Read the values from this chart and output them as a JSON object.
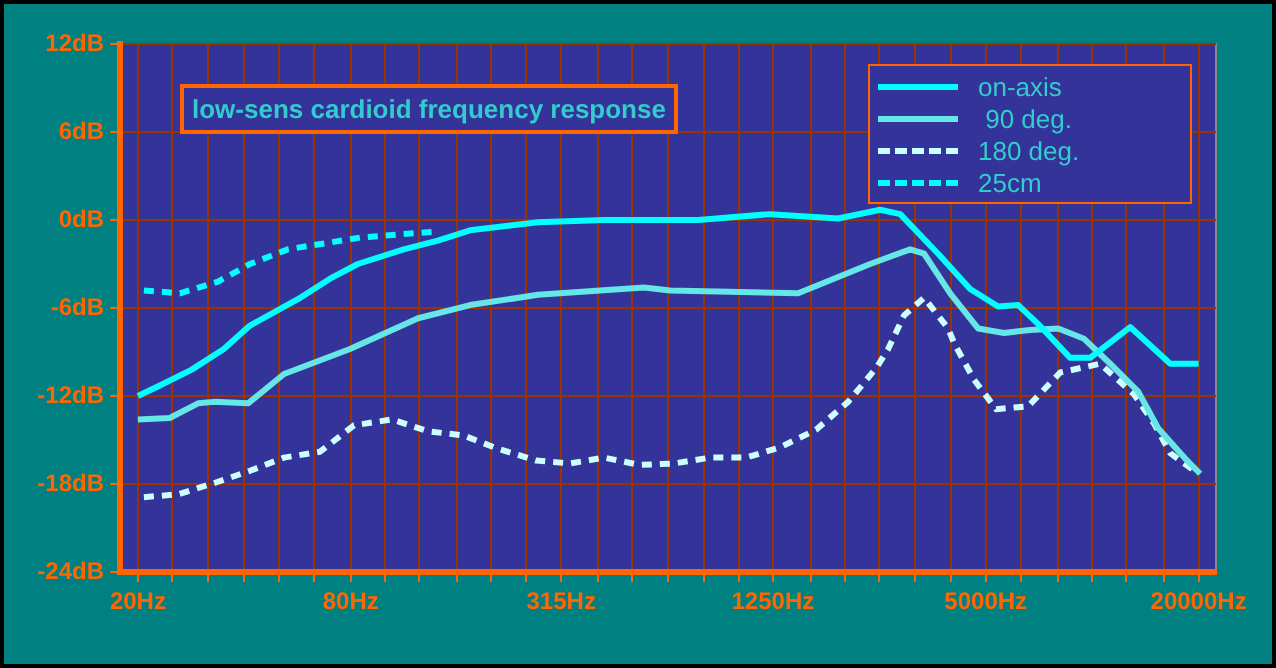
{
  "chart_data": {
    "type": "line",
    "title": "low-sens cardioid frequency response",
    "log": "x",
    "grid": true,
    "legend": "top right",
    "xlim": [
      17.8,
      22400
    ],
    "ylim": [
      -24,
      12
    ],
    "xticks": [
      {
        "value": 20,
        "label": "20Hz"
      },
      {
        "value": 25,
        "label": null
      },
      {
        "value": 31.5,
        "label": null
      },
      {
        "value": 40,
        "label": null
      },
      {
        "value": 50,
        "label": null
      },
      {
        "value": 63,
        "label": null
      },
      {
        "value": 80,
        "label": "80Hz"
      },
      {
        "value": 100,
        "label": null
      },
      {
        "value": 125,
        "label": null
      },
      {
        "value": 160,
        "label": null
      },
      {
        "value": 200,
        "label": null
      },
      {
        "value": 250,
        "label": null
      },
      {
        "value": 315,
        "label": "315Hz"
      },
      {
        "value": 400,
        "label": null
      },
      {
        "value": 500,
        "label": null
      },
      {
        "value": 630,
        "label": null
      },
      {
        "value": 800,
        "label": null
      },
      {
        "value": 1000,
        "label": null
      },
      {
        "value": 1250,
        "label": "1250Hz"
      },
      {
        "value": 1600,
        "label": null
      },
      {
        "value": 2000,
        "label": null
      },
      {
        "value": 2500,
        "label": null
      },
      {
        "value": 3150,
        "label": null
      },
      {
        "value": 4000,
        "label": null
      },
      {
        "value": 5000,
        "label": "5000Hz"
      },
      {
        "value": 6300,
        "label": null
      },
      {
        "value": 8000,
        "label": null
      },
      {
        "value": 10000,
        "label": null
      },
      {
        "value": 12500,
        "label": null
      },
      {
        "value": 16000,
        "label": null
      },
      {
        "value": 20000,
        "label": "20000Hz"
      }
    ],
    "yticks": [
      {
        "value": -24,
        "label": "-24dB"
      },
      {
        "value": -18,
        "label": "-18dB"
      },
      {
        "value": -12,
        "label": "-12dB"
      },
      {
        "value": -6,
        "label": "-6dB"
      },
      {
        "value": 0,
        "label": "0dB"
      },
      {
        "value": 6,
        "label": "6dB"
      },
      {
        "value": 12,
        "label": "12dB"
      }
    ],
    "series": [
      {
        "name": "on-axis",
        "color": "#00ffff",
        "line_style": "solid",
        "x": [
          20,
          23,
          28.4,
          35,
          41.5,
          56.7,
          69.9,
          83.8,
          113,
          141,
          174,
          271,
          417,
          768,
          1228,
          1912,
          2515,
          2865,
          3667,
          4517,
          5420,
          6178,
          7040,
          8667,
          9870,
          12810,
          16630,
          20000
        ],
        "values": [
          -12,
          -11.3,
          -10.2,
          -8.8,
          -7.2,
          -5.4,
          -4,
          -3,
          -2,
          -1.4,
          -0.7,
          -0.15,
          0,
          0,
          0.4,
          0.1,
          0.7,
          0.4,
          -2.3,
          -4.7,
          -5.9,
          -5.8,
          -7.1,
          -9.4,
          -9.4,
          -7.3,
          -9.8,
          -9.8
        ]
      },
      {
        "name": " 90 deg.",
        "color": "#66e6e6",
        "line_style": "solid",
        "x": [
          20,
          24.6,
          29.6,
          32.8,
          41,
          51.8,
          79.6,
          124,
          174,
          271,
          540,
          640,
          1474,
          2356,
          3057,
          3348,
          3967,
          4761,
          5637,
          6680,
          8020,
          9490,
          11250,
          13500,
          15370,
          18220,
          20200
        ],
        "values": [
          -13.6,
          -13.5,
          -12.5,
          -12.4,
          -12.5,
          -10.5,
          -8.8,
          -6.7,
          -5.8,
          -5.1,
          -4.6,
          -4.8,
          -5,
          -3,
          -2,
          -2.3,
          -5,
          -7.4,
          -7.7,
          -7.5,
          -7.4,
          -8.1,
          -9.8,
          -11.7,
          -14.2,
          -16.2,
          -17.3
        ]
      },
      {
        "name": "180 deg.",
        "color": "#ccffff",
        "line_style": "dashed",
        "x": [
          20.8,
          26,
          33.2,
          41.5,
          51.8,
          65.5,
          81.7,
          104.6,
          132.3,
          167.3,
          208.7,
          267.4,
          333.7,
          417,
          526,
          657,
          830,
          1050,
          1310,
          1656,
          2041,
          2449,
          2648,
          2939,
          3348,
          3916,
          4071,
          4638,
          5350,
          6594,
          8120,
          10530,
          13150,
          14980,
          16630,
          19450
        ],
        "values": [
          -18.9,
          -18.7,
          -17.9,
          -17.1,
          -16.2,
          -15.8,
          -14,
          -13.6,
          -14.4,
          -14.7,
          -15.6,
          -16.4,
          -16.6,
          -16.2,
          -16.7,
          -16.6,
          -16.2,
          -16.2,
          -15.5,
          -14.3,
          -12.4,
          -10.1,
          -8.8,
          -6.5,
          -5.3,
          -7.4,
          -8.4,
          -10.9,
          -12.9,
          -12.7,
          -10.4,
          -9.8,
          -11.9,
          -13.9,
          -15.9,
          -17.1
        ]
      },
      {
        "name": "25cm",
        "color": "#00ffff",
        "line_style": "dashed",
        "x": [
          20.8,
          26.3,
          33.7,
          41.5,
          53.1,
          67.2,
          84.9,
          107.4,
          137.5
        ],
        "values": [
          -4.8,
          -5,
          -4.2,
          -3,
          -2,
          -1.6,
          -1.2,
          -1,
          -0.8
        ]
      }
    ]
  }
}
